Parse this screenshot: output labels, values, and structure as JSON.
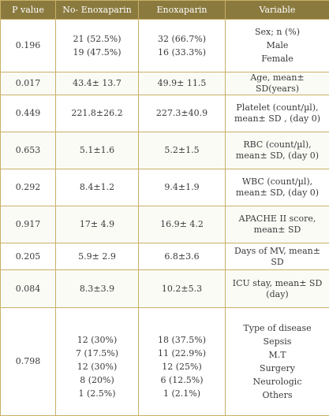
{
  "table": {
    "headers": [
      "P value",
      "No- Enoxaparin",
      "Enoxaparin",
      "Variable"
    ],
    "rows": [
      {
        "p": "0.196",
        "no_enox": [
          "21 (52.5%)",
          "19 (47.5%)"
        ],
        "enox": [
          "32 (66.7%)",
          "16 (33.3%)"
        ],
        "variable": [
          "Sex; n (%)",
          "Male",
          "Female"
        ]
      },
      {
        "p": "0.017",
        "no_enox": [
          "43.4± 13.7"
        ],
        "enox": [
          "49.9± 11.5"
        ],
        "variable": [
          "Age, mean± SD(years)"
        ]
      },
      {
        "p": "0.449",
        "no_enox": [
          "221.8±26.2"
        ],
        "enox": [
          "227.3±40.9"
        ],
        "variable": [
          "Platelet (count/µl),",
          "mean± SD , (day 0)"
        ]
      },
      {
        "p": "0.653",
        "no_enox": [
          "5.1±1.6"
        ],
        "enox": [
          "5.2±1.5"
        ],
        "variable": [
          "RBC (count/µl),",
          "mean± SD, (day 0)"
        ]
      },
      {
        "p": "0.292",
        "no_enox": [
          "8.4±1.2"
        ],
        "enox": [
          "9.4±1.9"
        ],
        "variable": [
          "WBC (count/µl),",
          "mean± SD, (day 0)"
        ]
      },
      {
        "p": "0.917",
        "no_enox": [
          "17± 4.9"
        ],
        "enox": [
          "16.9± 4.2"
        ],
        "variable": [
          "APACHE II score,",
          "mean± SD"
        ]
      },
      {
        "p": "0.205",
        "no_enox": [
          "5.9± 2.9"
        ],
        "enox": [
          "6.8±3.6"
        ],
        "variable": [
          "Days of MV, mean± SD"
        ]
      },
      {
        "p": "0.084",
        "no_enox": [
          "8.3±3.9"
        ],
        "enox": [
          "10.2±5.3"
        ],
        "variable": [
          "ICU stay, mean± SD",
          "(day)"
        ]
      },
      {
        "p": "0.798",
        "no_enox": [
          "12 (30%)",
          "7 (17.5%)",
          "12 (30%)",
          "8 (20%)",
          "1 (2.5%)"
        ],
        "enox": [
          "18 (37.5%)",
          "11 (22.9%)",
          "12 (25%)",
          "6 (12.5%)",
          "1 (2.1%)"
        ],
        "variable": [
          "Type of disease",
          "Sepsis",
          "M.T",
          "Surgery",
          "Neurologic",
          "Others"
        ]
      }
    ]
  }
}
